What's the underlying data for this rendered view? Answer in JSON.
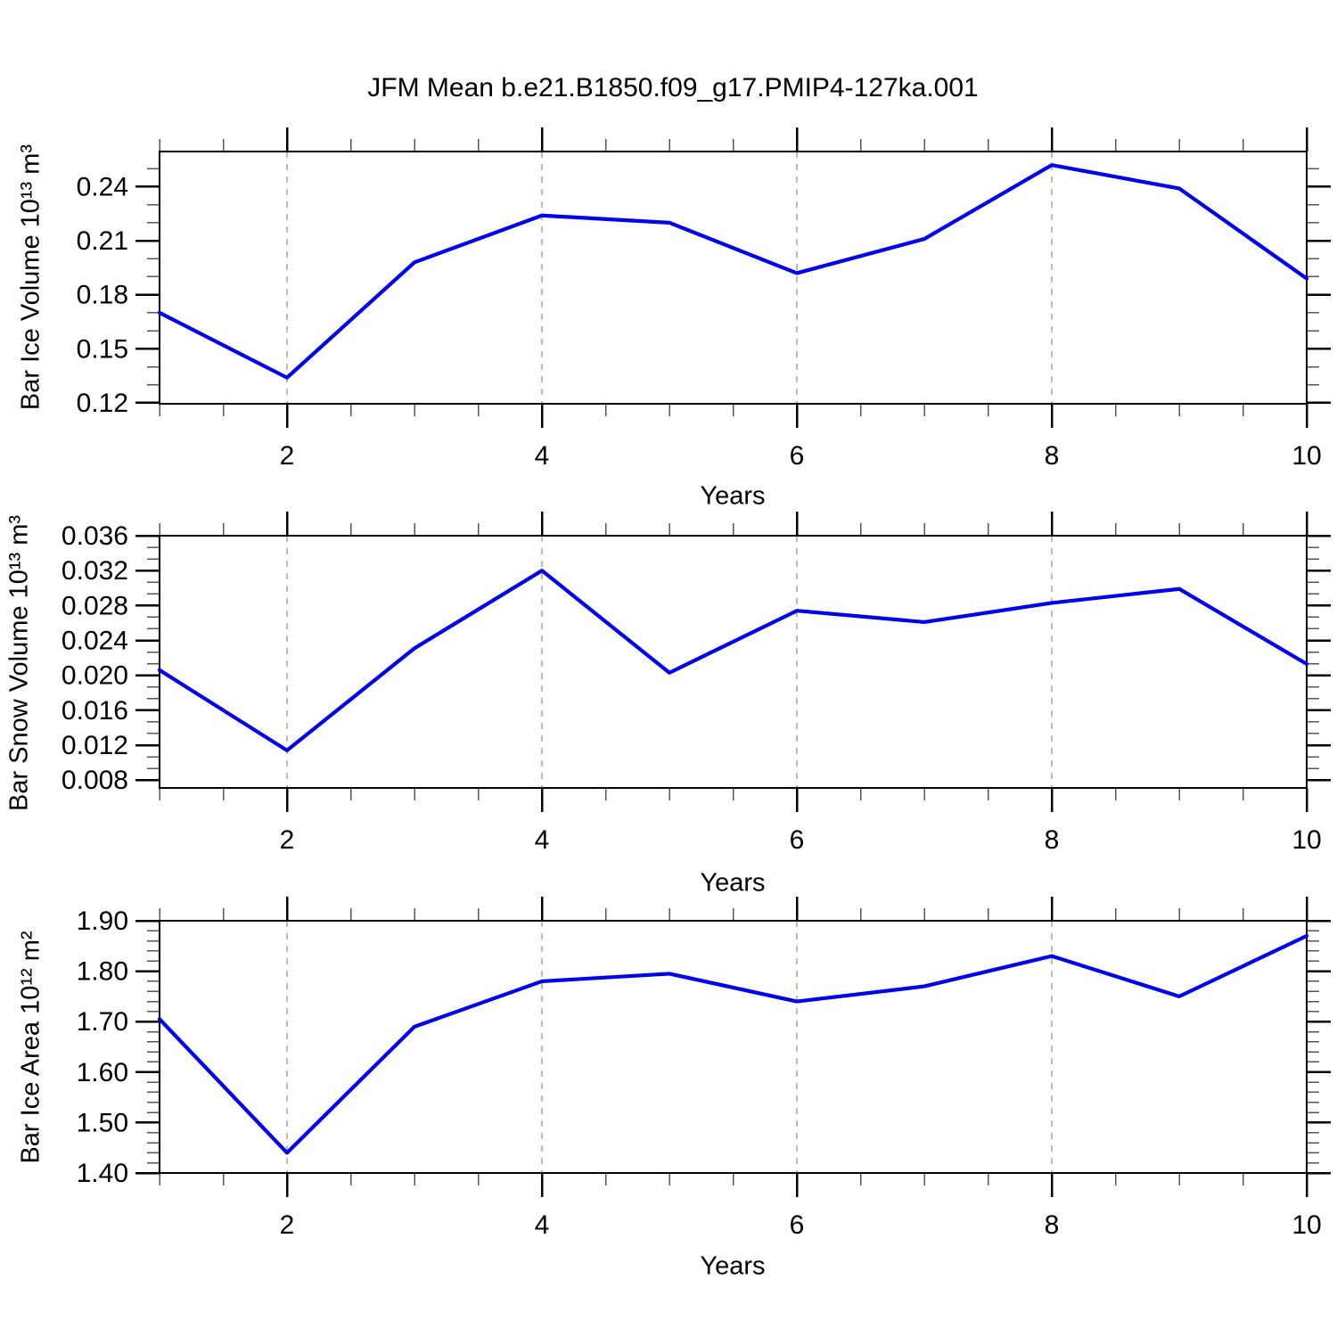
{
  "title": "JFM Mean b.e21.B1850.f09_g17.PMIP4-127ka.001",
  "line_color": "#0000EE",
  "grid_color": "#999999",
  "frame_color": "#000000",
  "chart_data": [
    {
      "type": "line",
      "title": "JFM Mean b.e21.B1850.f09_g17.PMIP4-127ka.001",
      "ylabel": "Bar Ice Volume 10¹³ m³",
      "xlabel": "Years",
      "x": [
        1,
        2,
        3,
        4,
        5,
        6,
        7,
        8,
        9,
        10
      ],
      "values": [
        0.17,
        0.134,
        0.198,
        0.224,
        0.22,
        0.192,
        0.211,
        0.252,
        0.239,
        0.189
      ],
      "ylim": [
        0.1195,
        0.2595
      ],
      "yticks": [
        0.12,
        0.15,
        0.18,
        0.21,
        0.24
      ],
      "ytick_labels": [
        "0.12",
        "0.15",
        "0.18",
        "0.21",
        "0.24"
      ],
      "minor_y_step": 0.01,
      "xlim": [
        1,
        10
      ],
      "xticks": [
        2,
        4,
        6,
        8,
        10
      ],
      "xtick_labels": [
        "2",
        "4",
        "6",
        "8",
        "10"
      ],
      "minor_x_step": 0.5,
      "grid_x": [
        2,
        4,
        6,
        8
      ],
      "legend": "none",
      "grid": "vertical-dashed"
    },
    {
      "type": "line",
      "title": "",
      "ylabel": "Bar Snow Volume 10¹³ m³",
      "xlabel": "Years",
      "x": [
        1,
        2,
        3,
        4,
        5,
        6,
        7,
        8,
        9,
        10
      ],
      "values": [
        0.0206,
        0.0114,
        0.0231,
        0.032,
        0.0203,
        0.0274,
        0.0261,
        0.0283,
        0.0299,
        0.0213
      ],
      "ylim": [
        0.0071,
        0.036
      ],
      "yticks": [
        0.008,
        0.012,
        0.016,
        0.02,
        0.024,
        0.028,
        0.032,
        0.036
      ],
      "ytick_labels": [
        "0.008",
        "0.012",
        "0.016",
        "0.020",
        "0.024",
        "0.028",
        "0.032",
        "0.036"
      ],
      "minor_y_step": 0.0013333,
      "xlim": [
        1,
        10
      ],
      "xticks": [
        2,
        4,
        6,
        8,
        10
      ],
      "xtick_labels": [
        "2",
        "4",
        "6",
        "8",
        "10"
      ],
      "minor_x_step": 0.5,
      "grid_x": [
        2,
        4,
        6,
        8
      ],
      "legend": "none",
      "grid": "vertical-dashed"
    },
    {
      "type": "line",
      "title": "",
      "ylabel": "Bar Ice Area 10¹² m²",
      "xlabel": "Years",
      "x": [
        1,
        2,
        3,
        4,
        5,
        6,
        7,
        8,
        9,
        10
      ],
      "values": [
        1.705,
        1.44,
        1.69,
        1.78,
        1.795,
        1.74,
        1.77,
        1.83,
        1.75,
        1.87
      ],
      "ylim": [
        1.4,
        1.9
      ],
      "yticks": [
        1.4,
        1.5,
        1.6,
        1.7,
        1.8,
        1.9
      ],
      "ytick_labels": [
        "1.40",
        "1.50",
        "1.60",
        "1.70",
        "1.80",
        "1.90"
      ],
      "minor_y_step": 0.02,
      "xlim": [
        1,
        10
      ],
      "xticks": [
        2,
        4,
        6,
        8,
        10
      ],
      "xtick_labels": [
        "2",
        "4",
        "6",
        "8",
        "10"
      ],
      "minor_x_step": 0.5,
      "grid_x": [
        2,
        4,
        6,
        8
      ],
      "legend": "none",
      "grid": "vertical-dashed"
    }
  ]
}
